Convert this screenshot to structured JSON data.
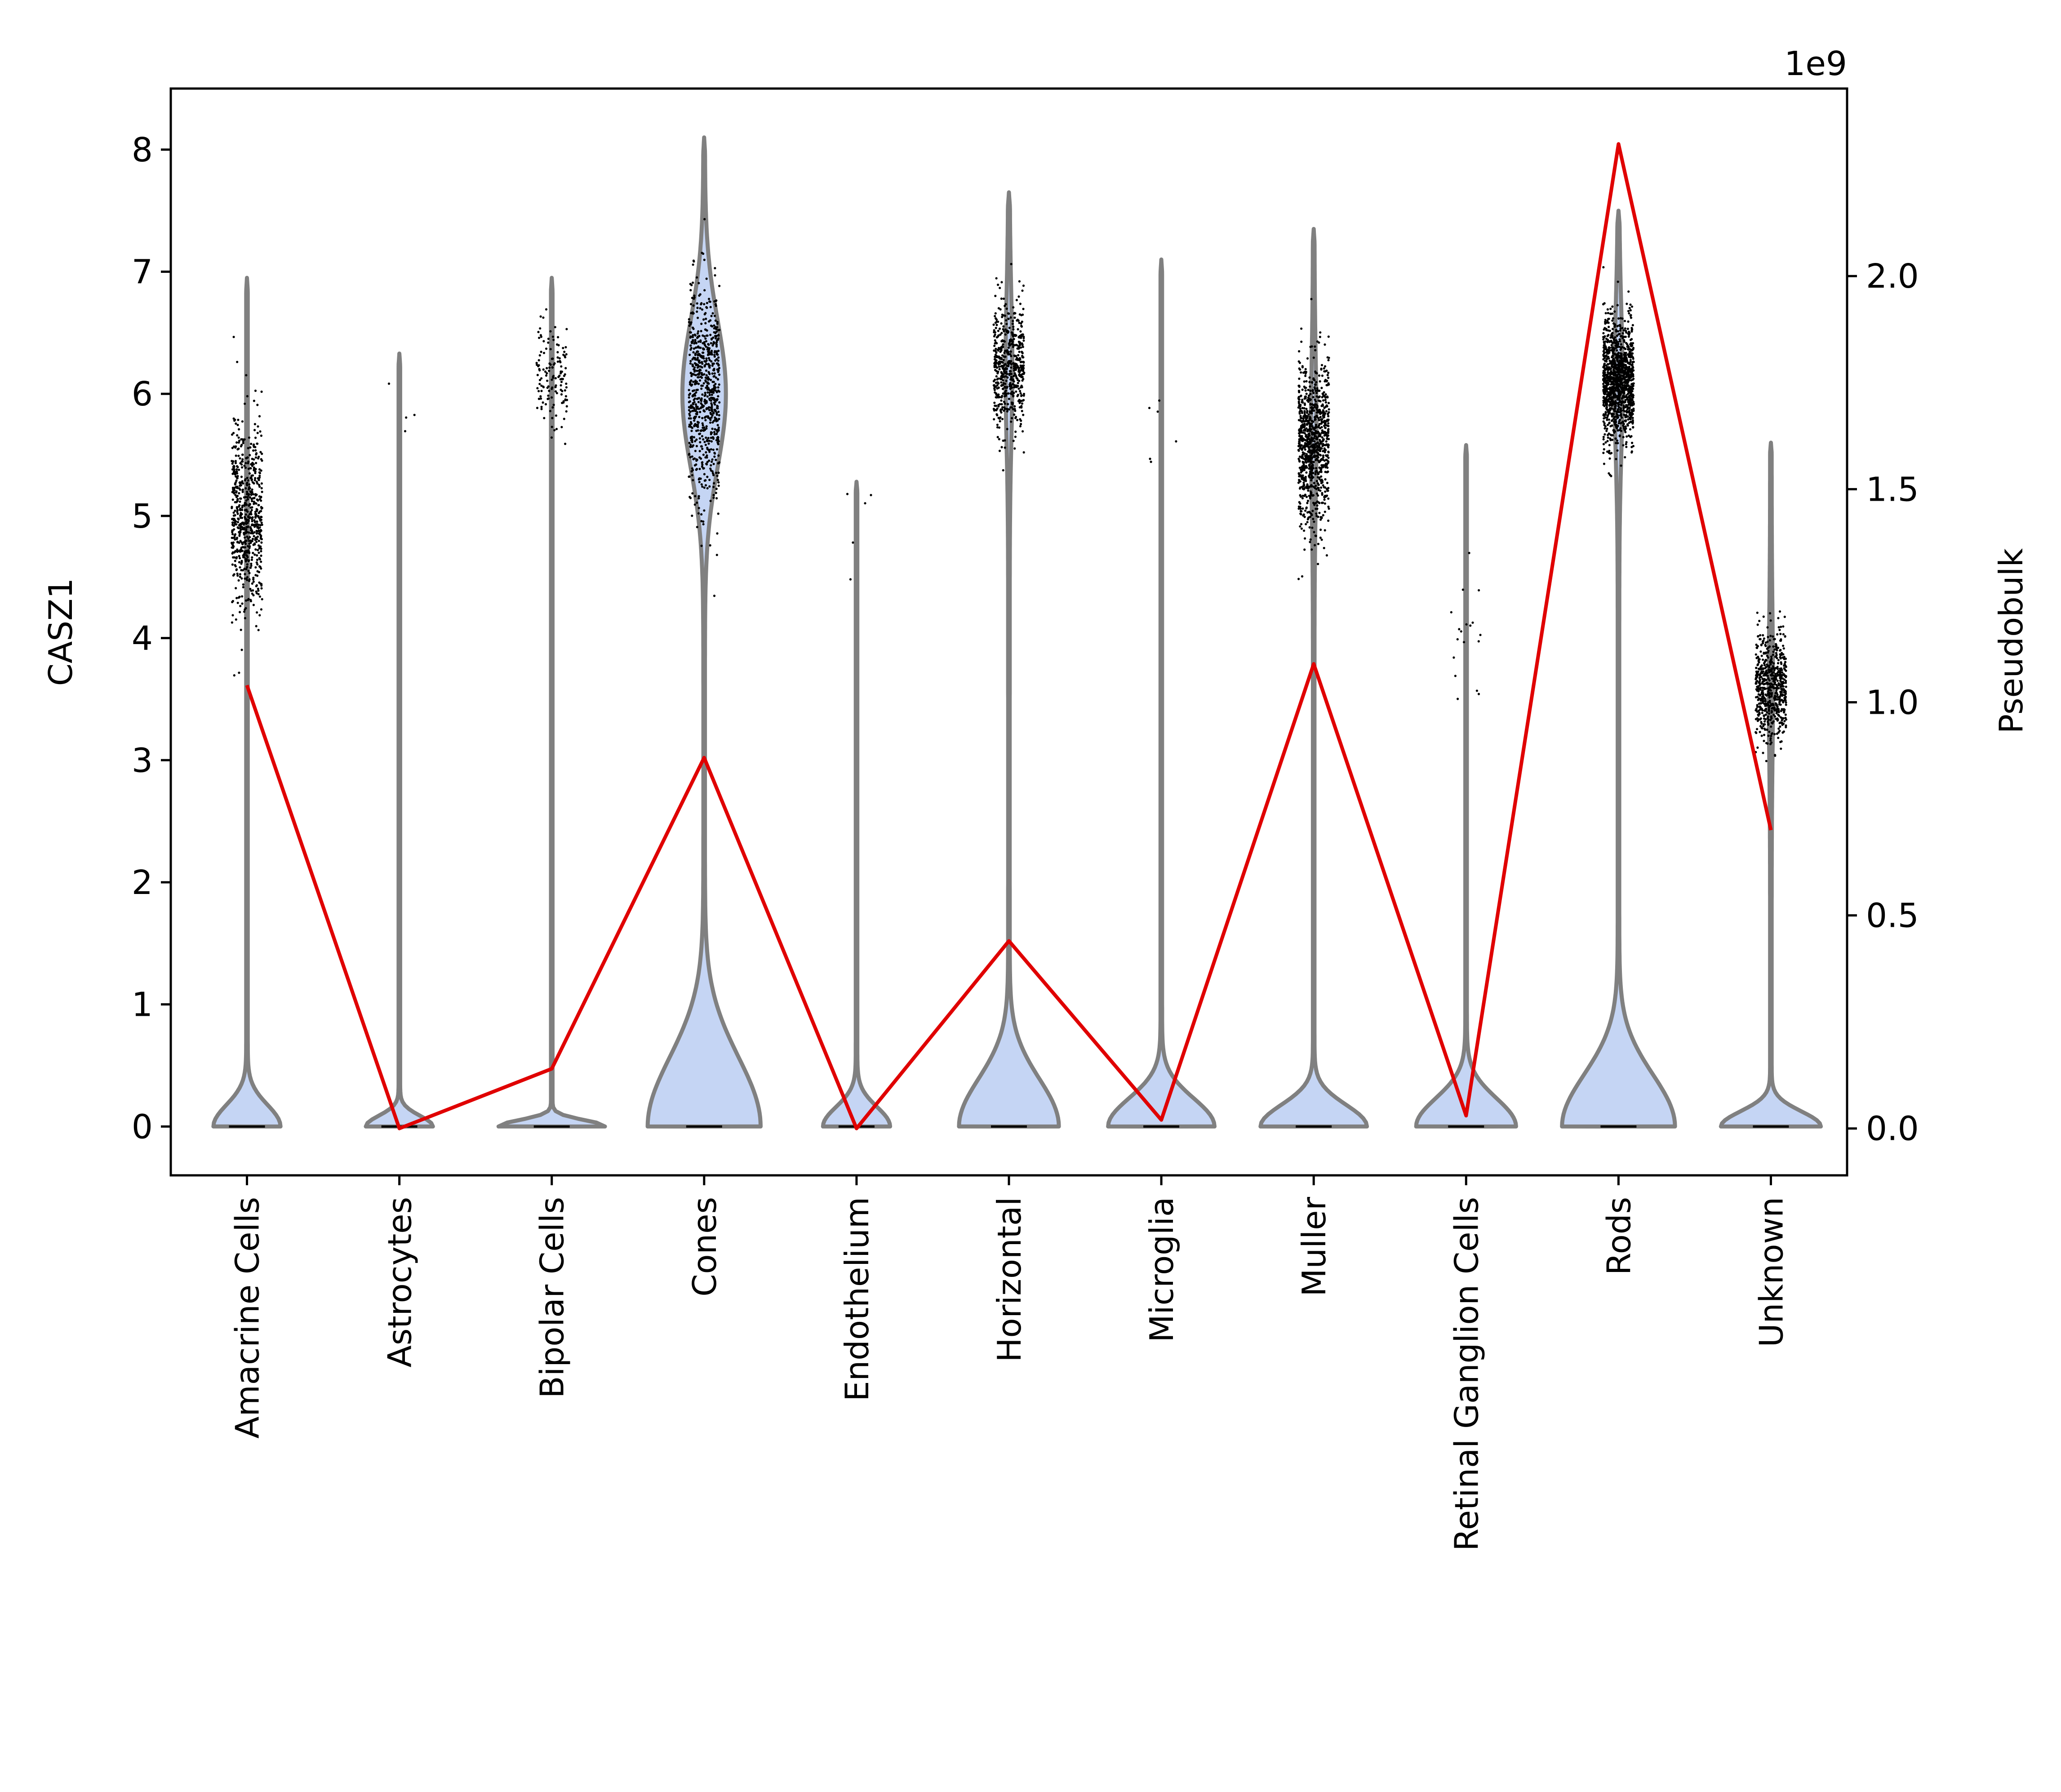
{
  "chart_data": {
    "type": "violin",
    "categories": [
      "Amacrine Cells",
      "Astrocytes",
      "Bipolar Cells",
      "Cones",
      "Endothelium",
      "Horizontal",
      "Microglia",
      "Muller",
      "Retinal Ganglion Cells",
      "Rods",
      "Unknown"
    ],
    "ylabel": "CASZ1",
    "y2label": "Pseudobulk",
    "y2_offset_label": "1e9",
    "ylim": [
      -0.4,
      8.5
    ],
    "y2lim": [
      -0.11,
      2.44
    ],
    "yticks": [
      "0",
      "1",
      "2",
      "3",
      "4",
      "5",
      "6",
      "7",
      "8"
    ],
    "y2ticks": [
      "0.0",
      "0.5",
      "1.0",
      "1.5",
      "2.0"
    ],
    "violin_fill": "#c5d5f4",
    "violin_edge": "#808080",
    "line_color": "#e00000",
    "violins": [
      {
        "max": 6.95,
        "zero_peak": 0.5,
        "zero_top": 0.5,
        "upper_center": 5.0,
        "upper_halfwidth": 0.0,
        "points_center": 5.0,
        "points_spread": 0.7,
        "points_count": 700
      },
      {
        "max": 6.33,
        "zero_peak": 0.5,
        "zero_top": 0.25,
        "upper_center": 5.5,
        "upper_halfwidth": 0.0,
        "points_center": 5.8,
        "points_spread": 0.6,
        "points_count": 4
      },
      {
        "max": 6.95,
        "zero_peak": 0.8,
        "zero_top": 0.15,
        "upper_center": 6.0,
        "upper_halfwidth": 0.0,
        "points_center": 6.1,
        "points_spread": 0.4,
        "points_count": 140
      },
      {
        "max": 8.1,
        "zero_peak": 0.85,
        "zero_top": 1.6,
        "upper_center": 6.0,
        "upper_halfwidth": 0.32,
        "points_center": 6.0,
        "points_spread": 0.8,
        "points_count": 750
      },
      {
        "max": 5.28,
        "zero_peak": 0.5,
        "zero_top": 0.45,
        "upper_center": 4.5,
        "upper_halfwidth": 0.0,
        "points_center": 4.8,
        "points_spread": 0.5,
        "points_count": 5
      },
      {
        "max": 7.65,
        "zero_peak": 0.75,
        "zero_top": 1.1,
        "upper_center": 6.2,
        "upper_halfwidth": 0.04,
        "points_center": 6.2,
        "points_spread": 0.5,
        "points_count": 550
      },
      {
        "max": 7.1,
        "zero_peak": 0.8,
        "zero_top": 0.65,
        "upper_center": 5.5,
        "upper_halfwidth": 0.0,
        "points_center": 5.5,
        "points_spread": 0.8,
        "points_count": 6
      },
      {
        "max": 7.35,
        "zero_peak": 0.8,
        "zero_top": 0.5,
        "upper_center": 5.7,
        "upper_halfwidth": 0.03,
        "points_center": 5.6,
        "points_spread": 0.6,
        "points_count": 950
      },
      {
        "max": 5.58,
        "zero_peak": 0.75,
        "zero_top": 0.65,
        "upper_center": 4.0,
        "upper_halfwidth": 0.0,
        "points_center": 4.0,
        "points_spread": 0.6,
        "points_count": 18
      },
      {
        "max": 7.5,
        "zero_peak": 0.85,
        "zero_top": 1.2,
        "upper_center": 6.1,
        "upper_halfwidth": 0.05,
        "points_center": 6.1,
        "points_spread": 0.45,
        "points_count": 1300
      },
      {
        "max": 5.6,
        "zero_peak": 0.75,
        "zero_top": 0.35,
        "upper_center": 3.6,
        "upper_halfwidth": 0.02,
        "points_center": 3.6,
        "points_spread": 0.4,
        "points_count": 650
      }
    ],
    "pseudobulk": [
      1.04,
      0.0,
      0.14,
      0.87,
      0.0,
      0.44,
      0.02,
      1.09,
      0.03,
      2.31,
      0.7
    ]
  }
}
